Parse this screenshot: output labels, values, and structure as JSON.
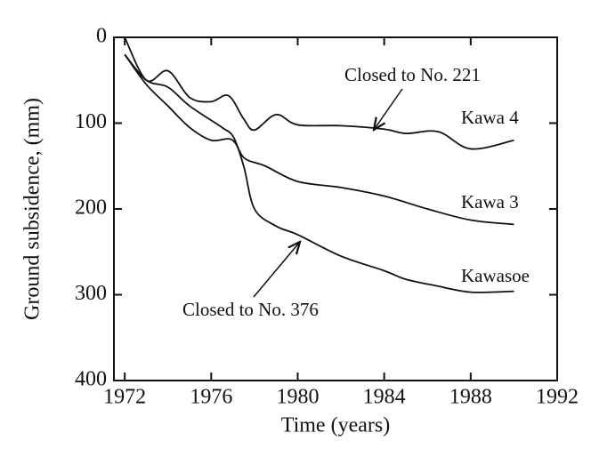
{
  "chart_data": {
    "type": "line",
    "y_inverted": true,
    "xlabel": "Time (years)",
    "ylabel": "Ground subsidence, (mm)",
    "xlim": [
      1971.5,
      1992
    ],
    "xticks": [
      1972,
      1976,
      1980,
      1984,
      1988,
      1992
    ],
    "ylim": [
      0,
      400
    ],
    "yticks": [
      0,
      100,
      200,
      300,
      400
    ],
    "series": [
      {
        "name": "Kawa 4",
        "color": "#111111",
        "x": [
          1972,
          1973,
          1974,
          1975,
          1976,
          1976.8,
          1977.5,
          1978,
          1979,
          1980,
          1982,
          1984,
          1985,
          1986.5,
          1988,
          1990
        ],
        "values": [
          0,
          50,
          39,
          70,
          75,
          68,
          95,
          108,
          90,
          102,
          103,
          107,
          112,
          110,
          130,
          120
        ]
      },
      {
        "name": "Kawa 3",
        "color": "#111111",
        "x": [
          1972,
          1973,
          1974,
          1975,
          1976.5,
          1977,
          1977.5,
          1978.5,
          1980,
          1982,
          1984,
          1986,
          1988,
          1990
        ],
        "values": [
          20,
          50,
          58,
          80,
          105,
          115,
          140,
          150,
          168,
          175,
          185,
          200,
          213,
          218
        ]
      },
      {
        "name": "Kawasoe",
        "color": "#111111",
        "x": [
          1972,
          1973,
          1974,
          1975,
          1976,
          1977,
          1977.5,
          1978,
          1979,
          1980,
          1982,
          1984,
          1985,
          1986.5,
          1988,
          1990
        ],
        "values": [
          20,
          55,
          80,
          105,
          120,
          120,
          150,
          200,
          220,
          230,
          255,
          272,
          282,
          290,
          297,
          296
        ]
      }
    ],
    "annotations": [
      "Closed to No. 221",
      "Closed to No. 376"
    ]
  }
}
